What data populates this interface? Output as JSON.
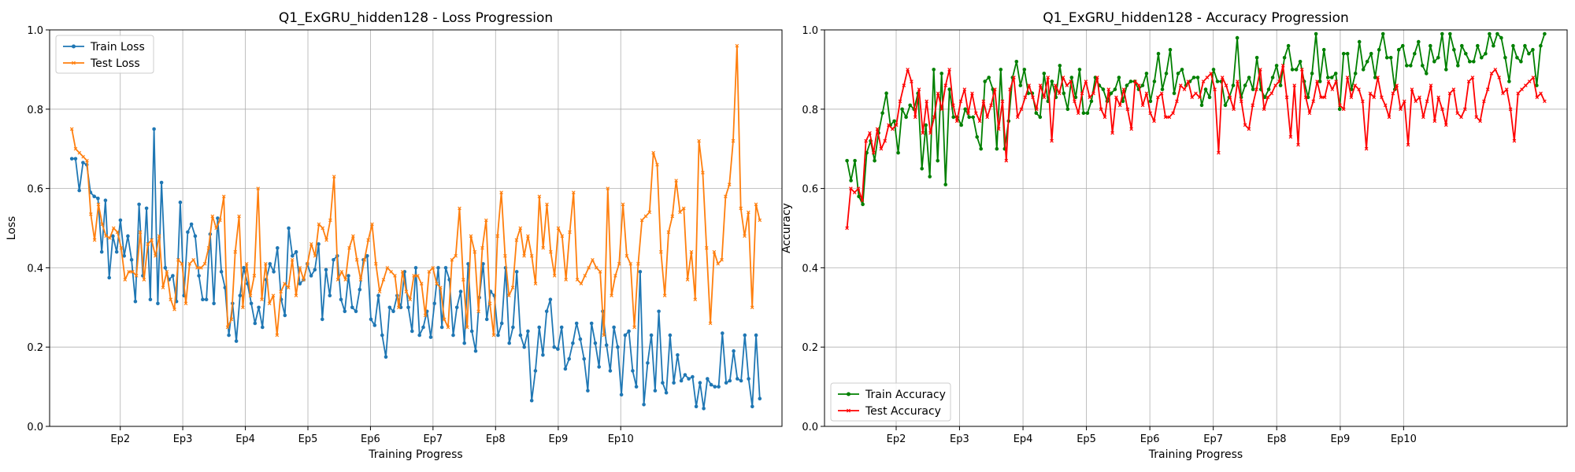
{
  "chart_data": [
    {
      "type": "line",
      "title": "Q1_ExGRU_hidden128 - Loss Progression",
      "xlabel": "Training Progress",
      "ylabel": "Loss",
      "ylim": [
        0.0,
        1.0
      ],
      "yticks": [
        "0.0",
        "0.2",
        "0.4",
        "0.6",
        "0.8",
        "1.0"
      ],
      "xticks": [
        "Ep2",
        "Ep3",
        "Ep4",
        "Ep5",
        "Ep6",
        "Ep7",
        "Ep8",
        "Ep9",
        "Ep10"
      ],
      "grid": true,
      "legend_position": "upper-left",
      "series": [
        {
          "name": "Train Loss",
          "color": "#1f77b4",
          "marker": "circle",
          "values": [
            0.675,
            0.675,
            0.595,
            0.665,
            0.66,
            0.59,
            0.58,
            0.575,
            0.44,
            0.57,
            0.375,
            0.48,
            0.44,
            0.52,
            0.43,
            0.48,
            0.42,
            0.315,
            0.56,
            0.38,
            0.55,
            0.32,
            0.75,
            0.31,
            0.615,
            0.4,
            0.37,
            0.38,
            0.315,
            0.565,
            0.33,
            0.49,
            0.51,
            0.48,
            0.38,
            0.32,
            0.32,
            0.485,
            0.31,
            0.525,
            0.39,
            0.35,
            0.23,
            0.31,
            0.215,
            0.33,
            0.4,
            0.36,
            0.31,
            0.26,
            0.3,
            0.25,
            0.37,
            0.41,
            0.39,
            0.45,
            0.32,
            0.28,
            0.5,
            0.43,
            0.44,
            0.36,
            0.37,
            0.41,
            0.38,
            0.395,
            0.46,
            0.27,
            0.395,
            0.33,
            0.42,
            0.43,
            0.32,
            0.29,
            0.38,
            0.3,
            0.29,
            0.345,
            0.42,
            0.43,
            0.27,
            0.255,
            0.33,
            0.23,
            0.175,
            0.3,
            0.29,
            0.33,
            0.3,
            0.39,
            0.3,
            0.24,
            0.4,
            0.23,
            0.25,
            0.29,
            0.225,
            0.31,
            0.4,
            0.25,
            0.4,
            0.37,
            0.23,
            0.3,
            0.34,
            0.21,
            0.41,
            0.24,
            0.19,
            0.325,
            0.41,
            0.27,
            0.34,
            0.33,
            0.23,
            0.26,
            0.4,
            0.21,
            0.25,
            0.39,
            0.23,
            0.2,
            0.24,
            0.065,
            0.14,
            0.25,
            0.18,
            0.29,
            0.32,
            0.2,
            0.195,
            0.25,
            0.145,
            0.17,
            0.21,
            0.26,
            0.22,
            0.17,
            0.09,
            0.26,
            0.21,
            0.15,
            0.29,
            0.205,
            0.14,
            0.25,
            0.2,
            0.08,
            0.23,
            0.24,
            0.14,
            0.1,
            0.39,
            0.055,
            0.16,
            0.23,
            0.09,
            0.29,
            0.11,
            0.085,
            0.23,
            0.11,
            0.18,
            0.115,
            0.13,
            0.12,
            0.125,
            0.05,
            0.11,
            0.045,
            0.12,
            0.105,
            0.1,
            0.1,
            0.235,
            0.11,
            0.115,
            0.19,
            0.12,
            0.115,
            0.23,
            0.12,
            0.05,
            0.23,
            0.07
          ]
        },
        {
          "name": "Test Loss",
          "color": "#ff7f0e",
          "marker": "x",
          "values": [
            0.75,
            0.7,
            0.69,
            0.68,
            0.67,
            0.535,
            0.47,
            0.56,
            0.51,
            0.48,
            0.475,
            0.5,
            0.49,
            0.45,
            0.37,
            0.39,
            0.39,
            0.38,
            0.49,
            0.37,
            0.46,
            0.47,
            0.43,
            0.48,
            0.35,
            0.39,
            0.32,
            0.295,
            0.42,
            0.41,
            0.31,
            0.41,
            0.42,
            0.4,
            0.4,
            0.41,
            0.45,
            0.53,
            0.5,
            0.52,
            0.58,
            0.25,
            0.27,
            0.44,
            0.53,
            0.3,
            0.41,
            0.33,
            0.38,
            0.6,
            0.32,
            0.41,
            0.31,
            0.33,
            0.23,
            0.34,
            0.36,
            0.35,
            0.42,
            0.33,
            0.4,
            0.37,
            0.41,
            0.46,
            0.43,
            0.51,
            0.5,
            0.47,
            0.52,
            0.63,
            0.37,
            0.39,
            0.37,
            0.45,
            0.48,
            0.42,
            0.37,
            0.42,
            0.47,
            0.51,
            0.41,
            0.34,
            0.37,
            0.4,
            0.39,
            0.38,
            0.3,
            0.39,
            0.34,
            0.32,
            0.38,
            0.38,
            0.36,
            0.28,
            0.39,
            0.4,
            0.36,
            0.35,
            0.27,
            0.25,
            0.42,
            0.43,
            0.55,
            0.37,
            0.25,
            0.48,
            0.44,
            0.29,
            0.45,
            0.52,
            0.31,
            0.23,
            0.48,
            0.59,
            0.43,
            0.33,
            0.35,
            0.47,
            0.5,
            0.43,
            0.48,
            0.43,
            0.36,
            0.58,
            0.45,
            0.56,
            0.44,
            0.38,
            0.5,
            0.48,
            0.37,
            0.49,
            0.59,
            0.37,
            0.36,
            0.38,
            0.4,
            0.42,
            0.4,
            0.39,
            0.23,
            0.6,
            0.33,
            0.38,
            0.41,
            0.56,
            0.43,
            0.41,
            0.25,
            0.41,
            0.52,
            0.53,
            0.54,
            0.69,
            0.66,
            0.44,
            0.33,
            0.49,
            0.53,
            0.62,
            0.54,
            0.55,
            0.37,
            0.44,
            0.32,
            0.72,
            0.64,
            0.45,
            0.26,
            0.44,
            0.41,
            0.42,
            0.58,
            0.61,
            0.72,
            0.96,
            0.55,
            0.48,
            0.54,
            0.3,
            0.56,
            0.52
          ]
        }
      ]
    },
    {
      "type": "line",
      "title": "Q1_ExGRU_hidden128 - Accuracy Progression",
      "xlabel": "Training Progress",
      "ylabel": "Accuracy",
      "ylim": [
        0.0,
        1.0
      ],
      "yticks": [
        "0.0",
        "0.2",
        "0.4",
        "0.6",
        "0.8",
        "1.0"
      ],
      "xticks": [
        "Ep2",
        "Ep3",
        "Ep4",
        "Ep5",
        "Ep6",
        "Ep7",
        "Ep8",
        "Ep9",
        "Ep10"
      ],
      "grid": true,
      "legend_position": "lower-left",
      "series": [
        {
          "name": "Train Accuracy",
          "color": "#008000",
          "marker": "circle",
          "values": [
            0.67,
            0.62,
            0.67,
            0.58,
            0.56,
            0.69,
            0.72,
            0.67,
            0.74,
            0.79,
            0.84,
            0.76,
            0.77,
            0.69,
            0.8,
            0.78,
            0.81,
            0.8,
            0.84,
            0.65,
            0.76,
            0.63,
            0.9,
            0.67,
            0.89,
            0.61,
            0.85,
            0.78,
            0.78,
            0.76,
            0.8,
            0.78,
            0.78,
            0.73,
            0.7,
            0.87,
            0.88,
            0.85,
            0.7,
            0.9,
            0.7,
            0.77,
            0.88,
            0.92,
            0.86,
            0.9,
            0.84,
            0.84,
            0.79,
            0.78,
            0.89,
            0.82,
            0.87,
            0.83,
            0.91,
            0.84,
            0.8,
            0.88,
            0.83,
            0.9,
            0.79,
            0.79,
            0.82,
            0.88,
            0.86,
            0.85,
            0.82,
            0.84,
            0.85,
            0.88,
            0.82,
            0.86,
            0.87,
            0.87,
            0.85,
            0.86,
            0.89,
            0.82,
            0.87,
            0.94,
            0.85,
            0.89,
            0.95,
            0.84,
            0.89,
            0.9,
            0.86,
            0.87,
            0.88,
            0.88,
            0.81,
            0.85,
            0.83,
            0.9,
            0.87,
            0.87,
            0.81,
            0.83,
            0.86,
            0.98,
            0.83,
            0.86,
            0.88,
            0.85,
            0.93,
            0.85,
            0.83,
            0.85,
            0.88,
            0.91,
            0.86,
            0.93,
            0.96,
            0.9,
            0.9,
            0.92,
            0.87,
            0.83,
            0.89,
            0.99,
            0.87,
            0.95,
            0.88,
            0.88,
            0.89,
            0.8,
            0.94,
            0.94,
            0.85,
            0.89,
            0.97,
            0.9,
            0.92,
            0.94,
            0.88,
            0.95,
            0.99,
            0.93,
            0.93,
            0.85,
            0.95,
            0.96,
            0.91,
            0.91,
            0.94,
            0.97,
            0.91,
            0.89,
            0.96,
            0.92,
            0.93,
            0.99,
            0.9,
            0.99,
            0.95,
            0.91,
            0.96,
            0.94,
            0.92,
            0.92,
            0.96,
            0.93,
            0.94,
            0.99,
            0.96,
            0.99,
            0.98,
            0.93,
            0.87,
            0.96,
            0.93,
            0.92,
            0.96,
            0.94,
            0.95,
            0.86,
            0.96,
            0.99
          ]
        },
        {
          "name": "Test Accuracy",
          "color": "#ff0000",
          "marker": "x",
          "values": [
            0.5,
            0.6,
            0.59,
            0.6,
            0.57,
            0.72,
            0.74,
            0.69,
            0.75,
            0.7,
            0.72,
            0.76,
            0.75,
            0.76,
            0.82,
            0.86,
            0.9,
            0.87,
            0.78,
            0.85,
            0.74,
            0.82,
            0.74,
            0.78,
            0.84,
            0.8,
            0.86,
            0.9,
            0.81,
            0.77,
            0.82,
            0.85,
            0.79,
            0.84,
            0.79,
            0.77,
            0.82,
            0.78,
            0.81,
            0.85,
            0.75,
            0.82,
            0.67,
            0.85,
            0.88,
            0.78,
            0.8,
            0.83,
            0.86,
            0.83,
            0.8,
            0.86,
            0.83,
            0.88,
            0.72,
            0.86,
            0.84,
            0.88,
            0.86,
            0.87,
            0.82,
            0.79,
            0.84,
            0.87,
            0.83,
            0.84,
            0.88,
            0.8,
            0.78,
            0.85,
            0.74,
            0.83,
            0.81,
            0.85,
            0.8,
            0.75,
            0.87,
            0.86,
            0.81,
            0.84,
            0.79,
            0.77,
            0.83,
            0.84,
            0.78,
            0.78,
            0.79,
            0.82,
            0.86,
            0.85,
            0.87,
            0.83,
            0.84,
            0.83,
            0.87,
            0.88,
            0.89,
            0.85,
            0.69,
            0.88,
            0.86,
            0.83,
            0.8,
            0.87,
            0.82,
            0.76,
            0.75,
            0.81,
            0.85,
            0.9,
            0.8,
            0.83,
            0.84,
            0.86,
            0.87,
            0.91,
            0.83,
            0.73,
            0.86,
            0.71,
            0.9,
            0.83,
            0.79,
            0.82,
            0.87,
            0.83,
            0.83,
            0.87,
            0.85,
            0.87,
            0.81,
            0.8,
            0.88,
            0.83,
            0.86,
            0.85,
            0.82,
            0.7,
            0.84,
            0.83,
            0.88,
            0.83,
            0.81,
            0.78,
            0.84,
            0.86,
            0.8,
            0.82,
            0.71,
            0.85,
            0.82,
            0.83,
            0.78,
            0.82,
            0.86,
            0.77,
            0.83,
            0.8,
            0.76,
            0.84,
            0.85,
            0.79,
            0.78,
            0.8,
            0.87,
            0.88,
            0.78,
            0.77,
            0.82,
            0.85,
            0.89,
            0.9,
            0.88,
            0.84,
            0.85,
            0.8,
            0.72,
            0.84,
            0.85,
            0.86,
            0.87,
            0.88,
            0.83,
            0.84,
            0.82
          ]
        }
      ]
    }
  ]
}
